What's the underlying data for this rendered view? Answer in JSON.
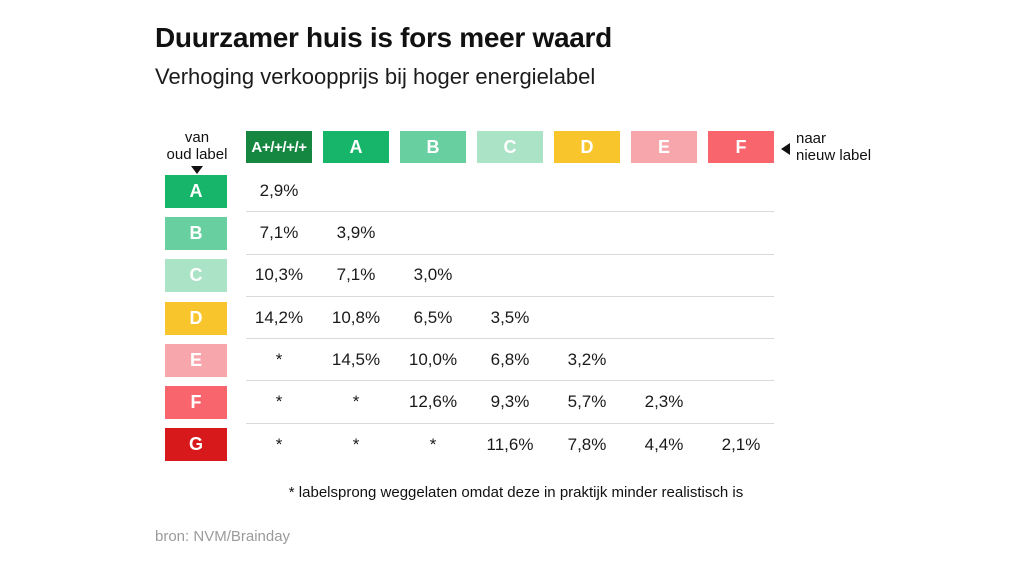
{
  "source": "bron: NVM/Brainday",
  "colors": {
    "background": "#ffffff",
    "divider": "#d9d9d9",
    "text": "#1a1a1a",
    "muted_text": "#9b9b9b"
  },
  "axis": {
    "van_line1": "van",
    "van_line2": "oud label",
    "naar_line1": "naar",
    "naar_line2": "nieuw label"
  },
  "chart_data": {
    "type": "table",
    "title": "Duurzamer huis is fors meer waard",
    "subtitle": "Verhoging verkoopprijs bij hoger energielabel",
    "row_axis_label": "van oud label",
    "col_axis_label": "naar nieuw label",
    "footnote": "* labelsprong weggelaten omdat deze in praktijk minder realistisch is",
    "columns": [
      "A+/+/+/+",
      "A",
      "B",
      "C",
      "D",
      "E",
      "F"
    ],
    "column_colors": [
      "#168741",
      "#17b56a",
      "#68cfa0",
      "#abe3c6",
      "#f9c52c",
      "#f7a7ac",
      "#f8656c"
    ],
    "rows": [
      {
        "label": "A",
        "color": "#17b56a",
        "values": [
          "2,9%",
          "",
          "",
          "",
          "",
          "",
          ""
        ]
      },
      {
        "label": "B",
        "color": "#68cfa0",
        "values": [
          "7,1%",
          "3,9%",
          "",
          "",
          "",
          "",
          ""
        ]
      },
      {
        "label": "C",
        "color": "#abe3c6",
        "values": [
          "10,3%",
          "7,1%",
          "3,0%",
          "",
          "",
          "",
          ""
        ]
      },
      {
        "label": "D",
        "color": "#f9c52c",
        "values": [
          "14,2%",
          "10,8%",
          "6,5%",
          "3,5%",
          "",
          "",
          ""
        ]
      },
      {
        "label": "E",
        "color": "#f7a7ac",
        "values": [
          "*",
          "14,5%",
          "10,0%",
          "6,8%",
          "3,2%",
          "",
          ""
        ]
      },
      {
        "label": "F",
        "color": "#f8656c",
        "values": [
          "*",
          "*",
          "12,6%",
          "9,3%",
          "5,7%",
          "2,3%",
          ""
        ]
      },
      {
        "label": "G",
        "color": "#d7191c",
        "values": [
          "*",
          "*",
          "*",
          "11,6%",
          "7,8%",
          "4,4%",
          "2,1%"
        ]
      }
    ]
  }
}
